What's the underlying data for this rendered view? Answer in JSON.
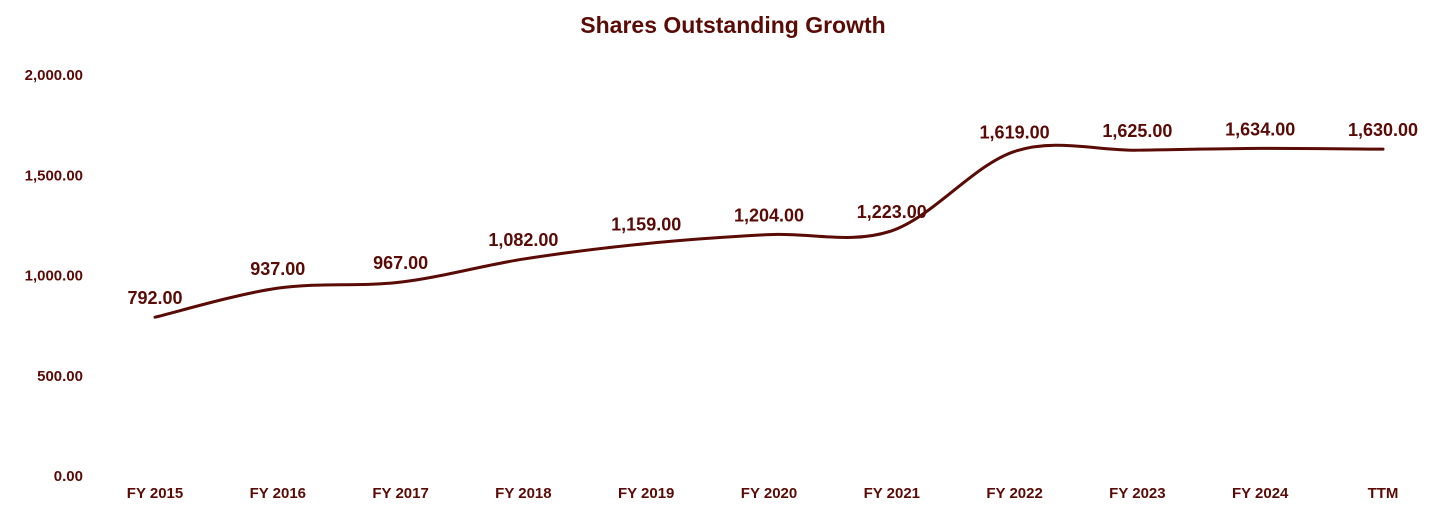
{
  "chart_data": {
    "type": "line",
    "title": "Shares Outstanding Growth",
    "xlabel": "",
    "ylabel": "",
    "categories": [
      "FY 2015",
      "FY 2016",
      "FY 2017",
      "FY 2018",
      "FY 2019",
      "FY 2020",
      "FY 2021",
      "FY 2022",
      "FY 2023",
      "FY 2024",
      "TTM"
    ],
    "values": [
      792,
      937,
      967,
      1082,
      1159,
      1204,
      1223,
      1619,
      1625,
      1634,
      1630
    ],
    "value_labels": [
      "792.00",
      "937.00",
      "967.00",
      "1,082.00",
      "1,159.00",
      "1,204.00",
      "1,223.00",
      "1,619.00",
      "1,625.00",
      "1,634.00",
      "1,630.00"
    ],
    "ylim": [
      0,
      2000
    ],
    "yticks": [
      0,
      500,
      1000,
      1500,
      2000
    ],
    "ytick_labels": [
      "0.00",
      "500.00",
      "1,000.00",
      "1,500.00",
      "2,000.00"
    ],
    "grid": false,
    "legend": "none",
    "line_color": "#5a0b06",
    "text_color": "#5a0b06"
  }
}
